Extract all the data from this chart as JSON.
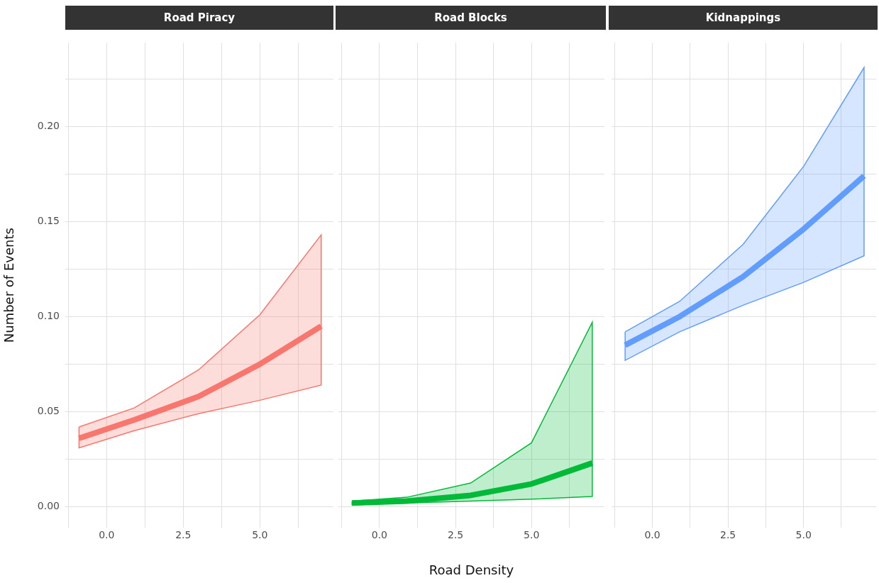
{
  "chart_data": [
    {
      "type": "line",
      "title": "Road Piracy",
      "ylabel": "Number of Events",
      "x": [
        -0.9,
        0.9,
        3,
        5,
        7
      ],
      "xlim": [
        -1.35,
        7.4
      ],
      "ylim": [
        -0.011,
        0.244
      ],
      "grid": true,
      "xticks": [
        {
          "value": -1.25,
          "label": null
        },
        {
          "value": 0,
          "label": "0.0"
        },
        {
          "value": 1.25,
          "label": null
        },
        {
          "value": 2.5,
          "label": "2.5"
        },
        {
          "value": 3.75,
          "label": null
        },
        {
          "value": 5,
          "label": "5.0"
        },
        {
          "value": 6.25,
          "label": null
        }
      ],
      "yticks": [
        {
          "value": 0,
          "label": "0.00"
        },
        {
          "value": 0.025,
          "label": null
        },
        {
          "value": 0.05,
          "label": "0.05"
        },
        {
          "value": 0.075,
          "label": null
        },
        {
          "value": 0.1,
          "label": "0.10"
        },
        {
          "value": 0.125,
          "label": null
        },
        {
          "value": 0.15,
          "label": "0.15"
        },
        {
          "value": 0.175,
          "label": null
        },
        {
          "value": 0.2,
          "label": "0.20"
        },
        {
          "value": 0.225,
          "label": null
        }
      ],
      "series": [
        {
          "color": "#f8766d",
          "values": [
            0.036,
            0.0457,
            0.058,
            0.075,
            0.095
          ],
          "lower": [
            0.031,
            0.04,
            0.049,
            0.056,
            0.064
          ],
          "upper": [
            0.042,
            0.052,
            0.072,
            0.101,
            0.143
          ]
        }
      ]
    },
    {
      "type": "line",
      "title": "Road Blocks",
      "xlabel": "Road Density",
      "x": [
        -0.9,
        0.9,
        3,
        5,
        7
      ],
      "xlim": [
        -1.35,
        7.4
      ],
      "ylim": [
        -0.011,
        0.244
      ],
      "grid": true,
      "tick_labels": "x",
      "xticks": [
        {
          "value": -1.25,
          "label": null
        },
        {
          "value": 0,
          "label": "0.0"
        },
        {
          "value": 1.25,
          "label": null
        },
        {
          "value": 2.5,
          "label": "2.5"
        },
        {
          "value": 3.75,
          "label": null
        },
        {
          "value": 5,
          "label": "5.0"
        },
        {
          "value": 6.25,
          "label": null
        }
      ],
      "yticks": [
        {
          "value": 0,
          "label": null
        },
        {
          "value": 0.025,
          "label": null
        },
        {
          "value": 0.05,
          "label": null
        },
        {
          "value": 0.075,
          "label": null
        },
        {
          "value": 0.1,
          "label": null
        },
        {
          "value": 0.125,
          "label": null
        },
        {
          "value": 0.15,
          "label": null
        },
        {
          "value": 0.175,
          "label": null
        },
        {
          "value": 0.2,
          "label": null
        },
        {
          "value": 0.225,
          "label": null
        }
      ],
      "series": [
        {
          "color": "#00ba38",
          "values": [
            0.002,
            0.003,
            0.006,
            0.012,
            0.023
          ],
          "lower": [
            0.001,
            0.002,
            0.003,
            0.004,
            0.0054
          ],
          "upper": [
            0.003,
            0.005,
            0.0125,
            0.0336,
            0.097
          ]
        }
      ]
    },
    {
      "type": "line",
      "title": "Kidnappings",
      "x": [
        -0.9,
        0.9,
        3,
        5,
        7
      ],
      "xlim": [
        -1.35,
        7.4
      ],
      "ylim": [
        -0.011,
        0.244
      ],
      "grid": true,
      "tick_labels": "x",
      "xticks": [
        {
          "value": -1.25,
          "label": null
        },
        {
          "value": 0,
          "label": "0.0"
        },
        {
          "value": 1.25,
          "label": null
        },
        {
          "value": 2.5,
          "label": "2.5"
        },
        {
          "value": 3.75,
          "label": null
        },
        {
          "value": 5,
          "label": "5.0"
        },
        {
          "value": 6.25,
          "label": null
        }
      ],
      "yticks": [
        {
          "value": 0,
          "label": null
        },
        {
          "value": 0.025,
          "label": null
        },
        {
          "value": 0.05,
          "label": null
        },
        {
          "value": 0.075,
          "label": null
        },
        {
          "value": 0.1,
          "label": null
        },
        {
          "value": 0.125,
          "label": null
        },
        {
          "value": 0.15,
          "label": null
        },
        {
          "value": 0.175,
          "label": null
        },
        {
          "value": 0.2,
          "label": null
        },
        {
          "value": 0.225,
          "label": null
        }
      ],
      "series": [
        {
          "color": "#619cff",
          "values": [
            0.085,
            0.1,
            0.121,
            0.146,
            0.174
          ],
          "lower": [
            0.077,
            0.092,
            0.106,
            0.118,
            0.132
          ],
          "upper": [
            0.092,
            0.108,
            0.138,
            0.179,
            0.231
          ]
        }
      ]
    }
  ]
}
